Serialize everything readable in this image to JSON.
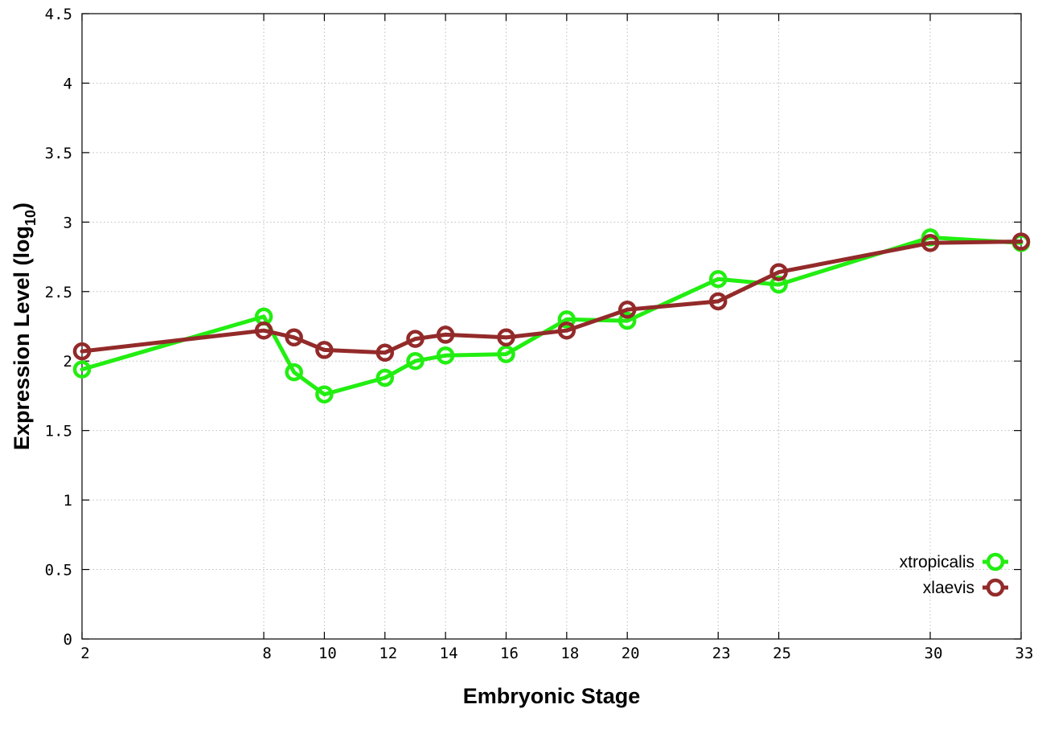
{
  "chart_data": {
    "type": "line",
    "xlabel": "Embryonic Stage",
    "ylabel": {
      "main": "Expression Level (log",
      "sub": "10",
      "end": ")"
    },
    "xlim": [
      2,
      33
    ],
    "ylim": [
      0,
      4.5
    ],
    "xticks": [
      2,
      8,
      10,
      12,
      14,
      16,
      18,
      20,
      23,
      25,
      30,
      33
    ],
    "yticks": [
      0,
      0.5,
      1,
      1.5,
      2,
      2.5,
      3,
      3.5,
      4,
      4.5
    ],
    "ytick_labels": [
      "0",
      "0.5",
      "1",
      "1.5",
      "2",
      "2.5",
      "3",
      "3.5",
      "4",
      "4.5"
    ],
    "grid": true,
    "legend_position": "bottom-right",
    "series": [
      {
        "name": "xtropicalis",
        "color": "#22ee11",
        "x": [
          2,
          8,
          9,
          10,
          12,
          13,
          14,
          16,
          18,
          20,
          23,
          25,
          30,
          33
        ],
        "y": [
          1.94,
          2.32,
          1.92,
          1.76,
          1.88,
          2.0,
          2.04,
          2.05,
          2.3,
          2.29,
          2.59,
          2.55,
          2.89,
          2.85
        ]
      },
      {
        "name": "xlaevis",
        "color": "#932a2a",
        "x": [
          2,
          8,
          9,
          10,
          12,
          13,
          14,
          16,
          18,
          20,
          23,
          25,
          30,
          33
        ],
        "y": [
          2.07,
          2.22,
          2.17,
          2.08,
          2.06,
          2.16,
          2.19,
          2.17,
          2.22,
          2.37,
          2.43,
          2.64,
          2.85,
          2.86
        ]
      }
    ]
  }
}
